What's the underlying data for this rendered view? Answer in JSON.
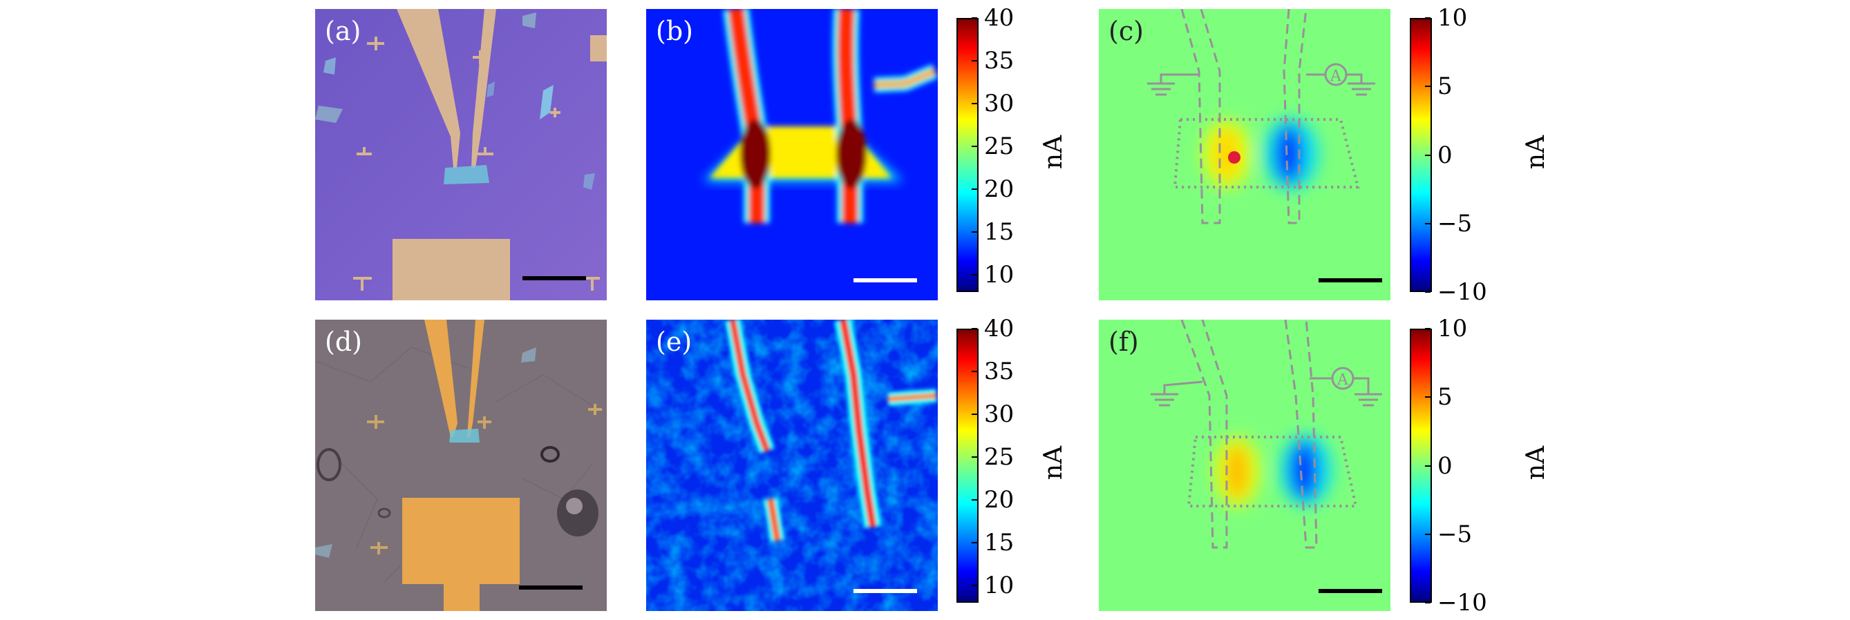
{
  "panels": {
    "a": {
      "label": "(a)"
    },
    "b": {
      "label": "(b)"
    },
    "c": {
      "label": "(c)"
    },
    "d": {
      "label": "(d)"
    },
    "e": {
      "label": "(e)"
    },
    "f": {
      "label": "(f)"
    }
  },
  "colorbars": {
    "top_current": {
      "unit": "nA",
      "ticks": [
        "40",
        "35",
        "30",
        "25",
        "20",
        "15",
        "10"
      ],
      "range": [
        8,
        40
      ]
    },
    "top_photo": {
      "unit": "nA",
      "ticks": [
        "10",
        "5",
        "0",
        "−5",
        "−10"
      ],
      "range": [
        -10,
        10
      ]
    },
    "bottom_current": {
      "unit": "nA",
      "ticks": [
        "40",
        "35",
        "30",
        "25",
        "20",
        "15",
        "10"
      ],
      "range": [
        8,
        40
      ]
    },
    "bottom_photo": {
      "unit": "nA",
      "ticks": [
        "10",
        "5",
        "0",
        "−5",
        "−10"
      ],
      "range": [
        -10,
        10
      ]
    }
  },
  "circuit": {
    "ammeter_symbol": "A"
  },
  "colors": {
    "substrate_purple": "#7f5fc9",
    "substrate_gray": "#7c7178",
    "gold": "#d8b592",
    "gold_orange": "#e8a74e",
    "map_blue": "#0019ff",
    "map_green": "#7dff7d",
    "marker_red": "#e01c3c"
  }
}
